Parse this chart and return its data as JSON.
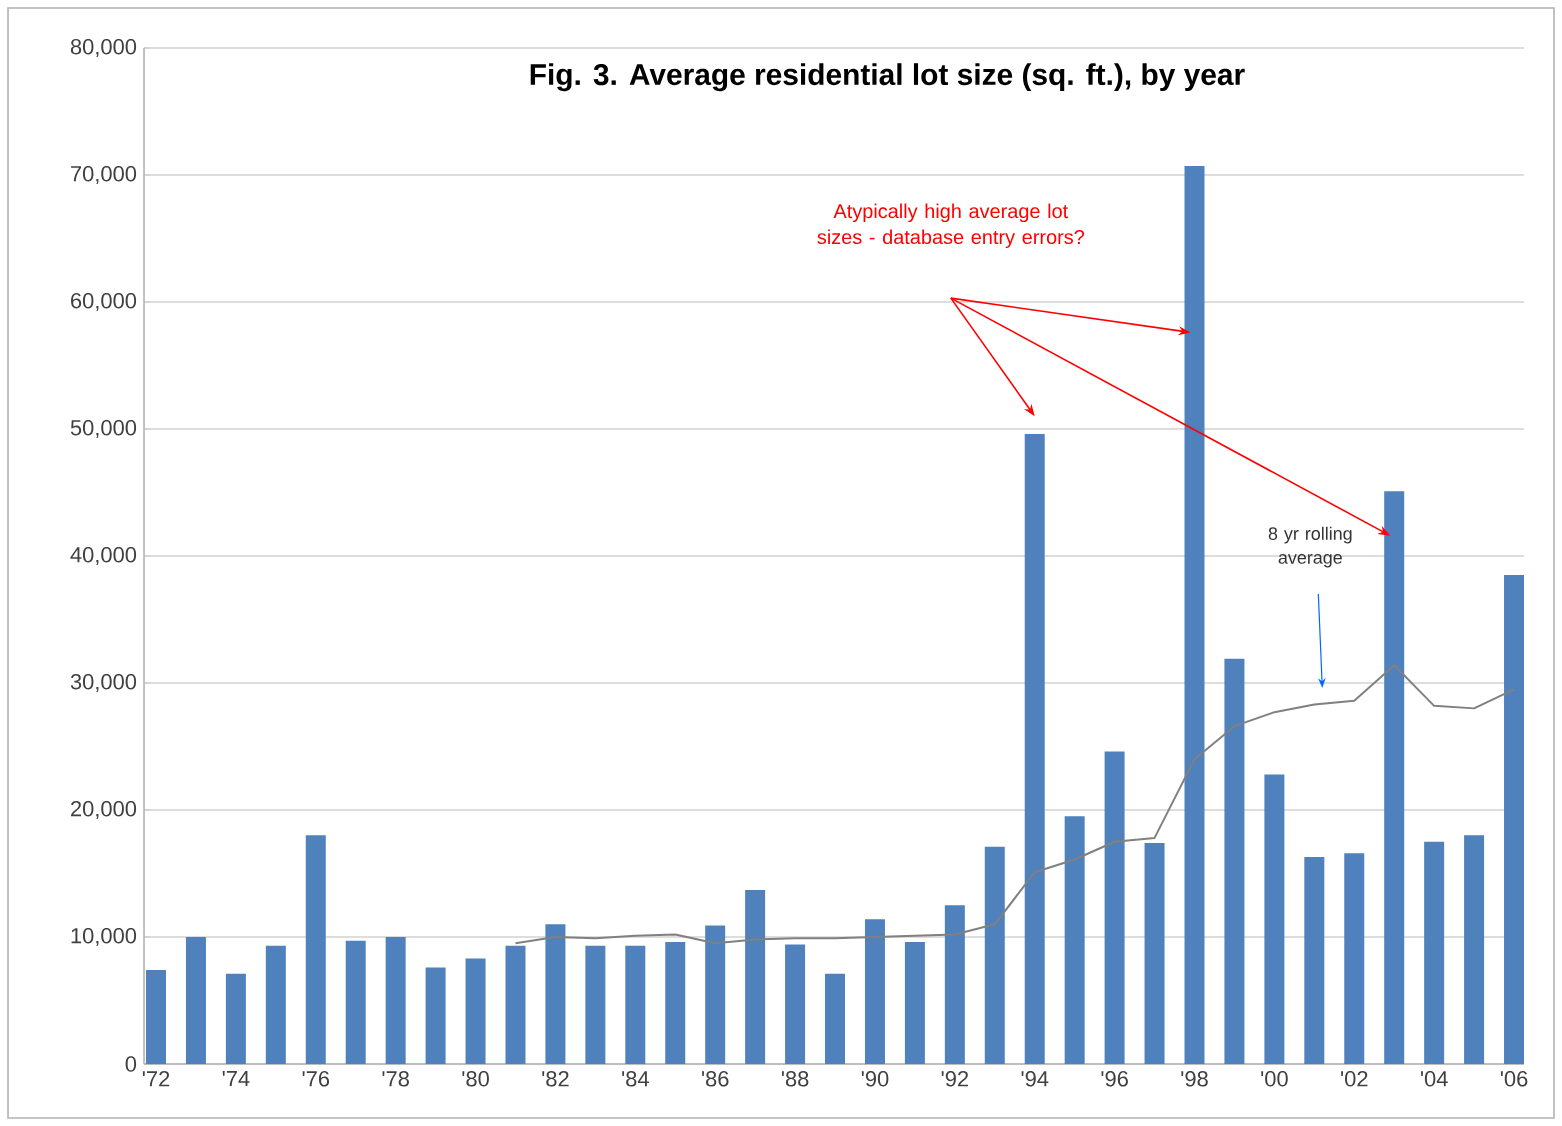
{
  "chart_data": {
    "type": "bar",
    "title": "Fig. 3.  Average residential lot size (sq. ft.), by year",
    "categories": [
      "'72",
      null,
      "'74",
      null,
      "'76",
      null,
      "'78",
      null,
      "'80",
      null,
      "'82",
      null,
      "'84",
      null,
      "'86",
      null,
      "'88",
      null,
      "'90",
      null,
      "'92",
      null,
      "'94",
      null,
      "'96",
      null,
      "'98",
      null,
      "'00",
      null,
      "'02",
      null,
      "'04",
      null,
      "'06"
    ],
    "series": [
      {
        "color": "#4f81bd",
        "values": [
          7400,
          10000,
          7100,
          9300,
          18000,
          9700,
          10000,
          7600,
          8300,
          9300,
          11000,
          9300,
          9300,
          9600,
          10900,
          13700,
          9400,
          7100,
          11400,
          9600,
          12500,
          17100,
          49600,
          19500,
          24600,
          17400,
          70700,
          31900,
          22800,
          16300,
          16600,
          45100,
          17500,
          18000,
          38500
        ]
      },
      {
        "type": "line",
        "color": "#808080",
        "values": [
          null,
          null,
          null,
          null,
          null,
          null,
          null,
          null,
          null,
          9500,
          10000,
          9900,
          10100,
          10200,
          9500,
          9800,
          9900,
          9900,
          10000,
          10100,
          10200,
          11000,
          15100,
          16100,
          17500,
          17800,
          24000,
          26600,
          27700,
          28300,
          28600,
          31400,
          28200,
          28000,
          29500
        ]
      }
    ],
    "ylim": [
      0,
      80000
    ],
    "yticks": [
      {
        "value": 0,
        "label": "0"
      },
      {
        "value": 10000,
        "label": "10,000"
      },
      {
        "value": 20000,
        "label": "20,000"
      },
      {
        "value": 30000,
        "label": "30,000"
      },
      {
        "value": 40000,
        "label": "40,000"
      },
      {
        "value": 50000,
        "label": "50,000"
      },
      {
        "value": 60000,
        "label": "60,000"
      },
      {
        "value": 70000,
        "label": "70,000"
      },
      {
        "value": 80000,
        "label": "80,000"
      }
    ],
    "grid": "y",
    "annotations": [
      "Atypically high average lot sizes - database entry errors?",
      "8 yr rolling average"
    ]
  }
}
